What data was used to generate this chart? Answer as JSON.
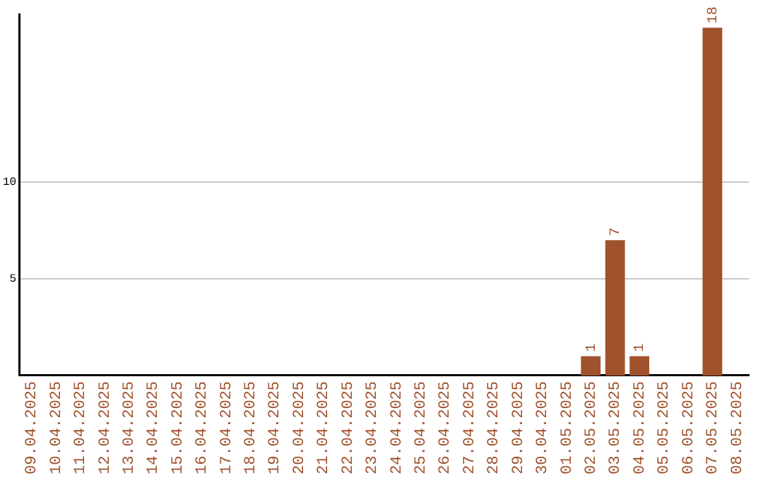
{
  "chart_data": {
    "type": "bar",
    "categories": [
      "09.04.2025",
      "10.04.2025",
      "11.04.2025",
      "12.04.2025",
      "13.04.2025",
      "14.04.2025",
      "15.04.2025",
      "16.04.2025",
      "17.04.2025",
      "18.04.2025",
      "19.04.2025",
      "20.04.2025",
      "21.04.2025",
      "22.04.2025",
      "23.04.2025",
      "24.04.2025",
      "25.04.2025",
      "26.04.2025",
      "27.04.2025",
      "28.04.2025",
      "29.04.2025",
      "30.04.2025",
      "01.05.2025",
      "02.05.2025",
      "03.05.2025",
      "04.05.2025",
      "05.05.2025",
      "06.05.2025",
      "07.05.2025",
      "08.05.2025"
    ],
    "values": [
      0,
      0,
      0,
      0,
      0,
      0,
      0,
      0,
      0,
      0,
      0,
      0,
      0,
      0,
      0,
      0,
      0,
      0,
      0,
      0,
      0,
      0,
      0,
      1,
      7,
      1,
      0,
      0,
      18,
      0
    ],
    "value_labels": [
      null,
      null,
      null,
      null,
      null,
      null,
      null,
      null,
      null,
      null,
      null,
      null,
      null,
      null,
      null,
      null,
      null,
      null,
      null,
      null,
      null,
      null,
      null,
      "1",
      "7",
      "1",
      null,
      null,
      "18",
      null
    ],
    "color": "#a0522d",
    "ylim": [
      0,
      18.7
    ],
    "yticks": [
      5,
      10
    ],
    "grid": "y",
    "legend": false
  }
}
